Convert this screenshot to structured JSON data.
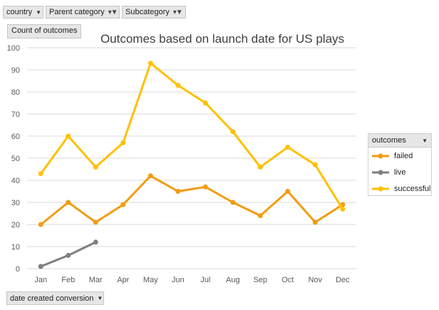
{
  "filters": [
    {
      "label": "country",
      "icon": "dropdown-arrow-icon"
    },
    {
      "label": "Parent category",
      "icon": "filter-dropdown-icon"
    },
    {
      "label": "Subcategory",
      "icon": "filter-dropdown-icon"
    }
  ],
  "values_button": {
    "label": "Count of outcomes"
  },
  "axis_button": {
    "label": "date created conversion",
    "icon": "dropdown-arrow-icon"
  },
  "legend": {
    "title": "outcomes",
    "icon": "dropdown-arrow-icon"
  },
  "chart_data": {
    "type": "line",
    "title": "Outcomes based on launch date for US plays",
    "xlabel": "",
    "ylabel": "",
    "categories": [
      "Jan",
      "Feb",
      "Mar",
      "Apr",
      "May",
      "Jun",
      "Jul",
      "Aug",
      "Sep",
      "Oct",
      "Nov",
      "Dec"
    ],
    "ylim": [
      0,
      100
    ],
    "yticks": [
      0,
      10,
      20,
      30,
      40,
      50,
      60,
      70,
      80,
      90,
      100
    ],
    "grid": true,
    "legend_position": "right",
    "series": [
      {
        "name": "failed",
        "color": "#f29c12",
        "values": [
          20,
          30,
          21,
          29,
          42,
          35,
          37,
          30,
          24,
          35,
          21,
          29
        ]
      },
      {
        "name": "live",
        "color": "#7f7f7f",
        "values": [
          1,
          6,
          12,
          null,
          null,
          null,
          null,
          null,
          null,
          null,
          null,
          null
        ]
      },
      {
        "name": "successful",
        "color": "#ffc000",
        "values": [
          43,
          60,
          46,
          57,
          93,
          83,
          75,
          62,
          46,
          55,
          47,
          27
        ]
      }
    ]
  }
}
